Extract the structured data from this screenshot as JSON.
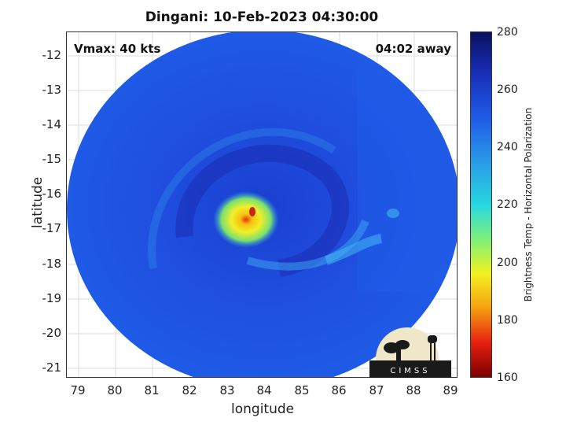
{
  "title": "Dingani: 10-Feb-2023 04:30:00",
  "vmax_label": "Vmax: 40 kts",
  "away_label": "04:02 away",
  "map": {
    "x_axis_label": "longitude",
    "y_axis_label": "latitude",
    "x_ticks": [
      "79",
      "80",
      "81",
      "82",
      "83",
      "84",
      "85",
      "86",
      "87",
      "88",
      "89"
    ],
    "y_ticks": [
      "-12",
      "-13",
      "-14",
      "-15",
      "-16",
      "-17",
      "-18",
      "-19",
      "-20",
      "-21"
    ],
    "lon_range": [
      78.75,
      89.2
    ],
    "lat_range": [
      -21.3,
      -11.35
    ],
    "storm_center": {
      "lon": 83.6,
      "lat": -16.9
    }
  },
  "colorbar": {
    "label": "Brightness Temp - Horizontal Polarization",
    "ticks": [
      "280",
      "260",
      "240",
      "220",
      "200",
      "180",
      "160"
    ],
    "range": [
      160,
      280
    ]
  },
  "logo": {
    "text": "CIMSS"
  },
  "colors": {
    "background": "#1f4fe0",
    "core_warm": "#f2e020",
    "cold_edge": "#d02010"
  }
}
